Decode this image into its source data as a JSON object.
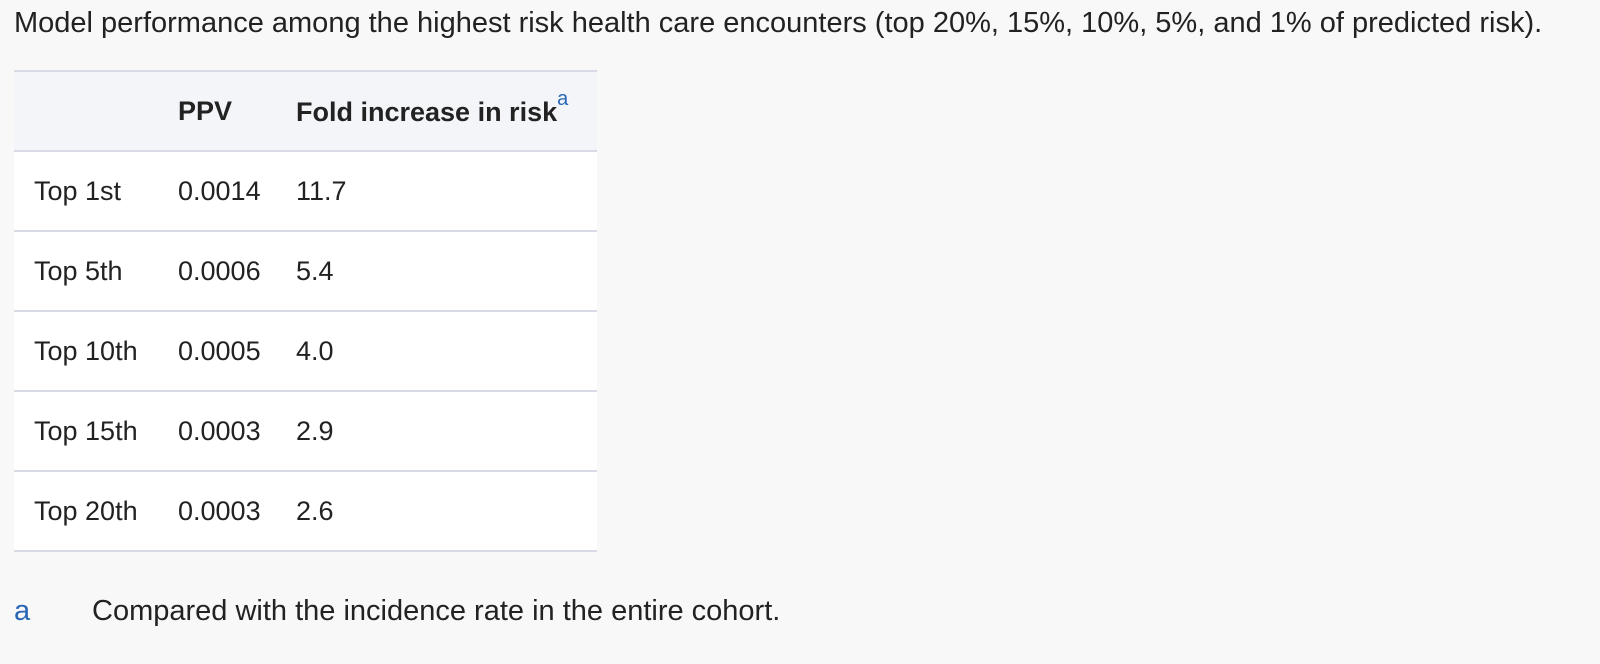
{
  "caption": "Model performance among the highest risk health care encounters (top 20%, 15%, 10%, 5%, and 1% of predicted risk).",
  "table": {
    "headers": {
      "row_label": "",
      "ppv": "PPV",
      "fold": "Fold increase in risk",
      "fold_footnote_marker": "a"
    },
    "rows": [
      {
        "label": "Top 1st",
        "ppv": "0.0014",
        "fold": "11.7"
      },
      {
        "label": "Top 5th",
        "ppv": "0.0006",
        "fold": "5.4"
      },
      {
        "label": "Top 10th",
        "ppv": "0.0005",
        "fold": "4.0"
      },
      {
        "label": "Top 15th",
        "ppv": "0.0003",
        "fold": "2.9"
      },
      {
        "label": "Top 20th",
        "ppv": "0.0003",
        "fold": "2.6"
      }
    ]
  },
  "footnote": {
    "marker": "a",
    "text": "Compared with the incidence rate in the entire cohort."
  },
  "colors": {
    "link": "#2a66b6",
    "header_bg": "#f3f5f9",
    "border": "#d8dbe6"
  }
}
